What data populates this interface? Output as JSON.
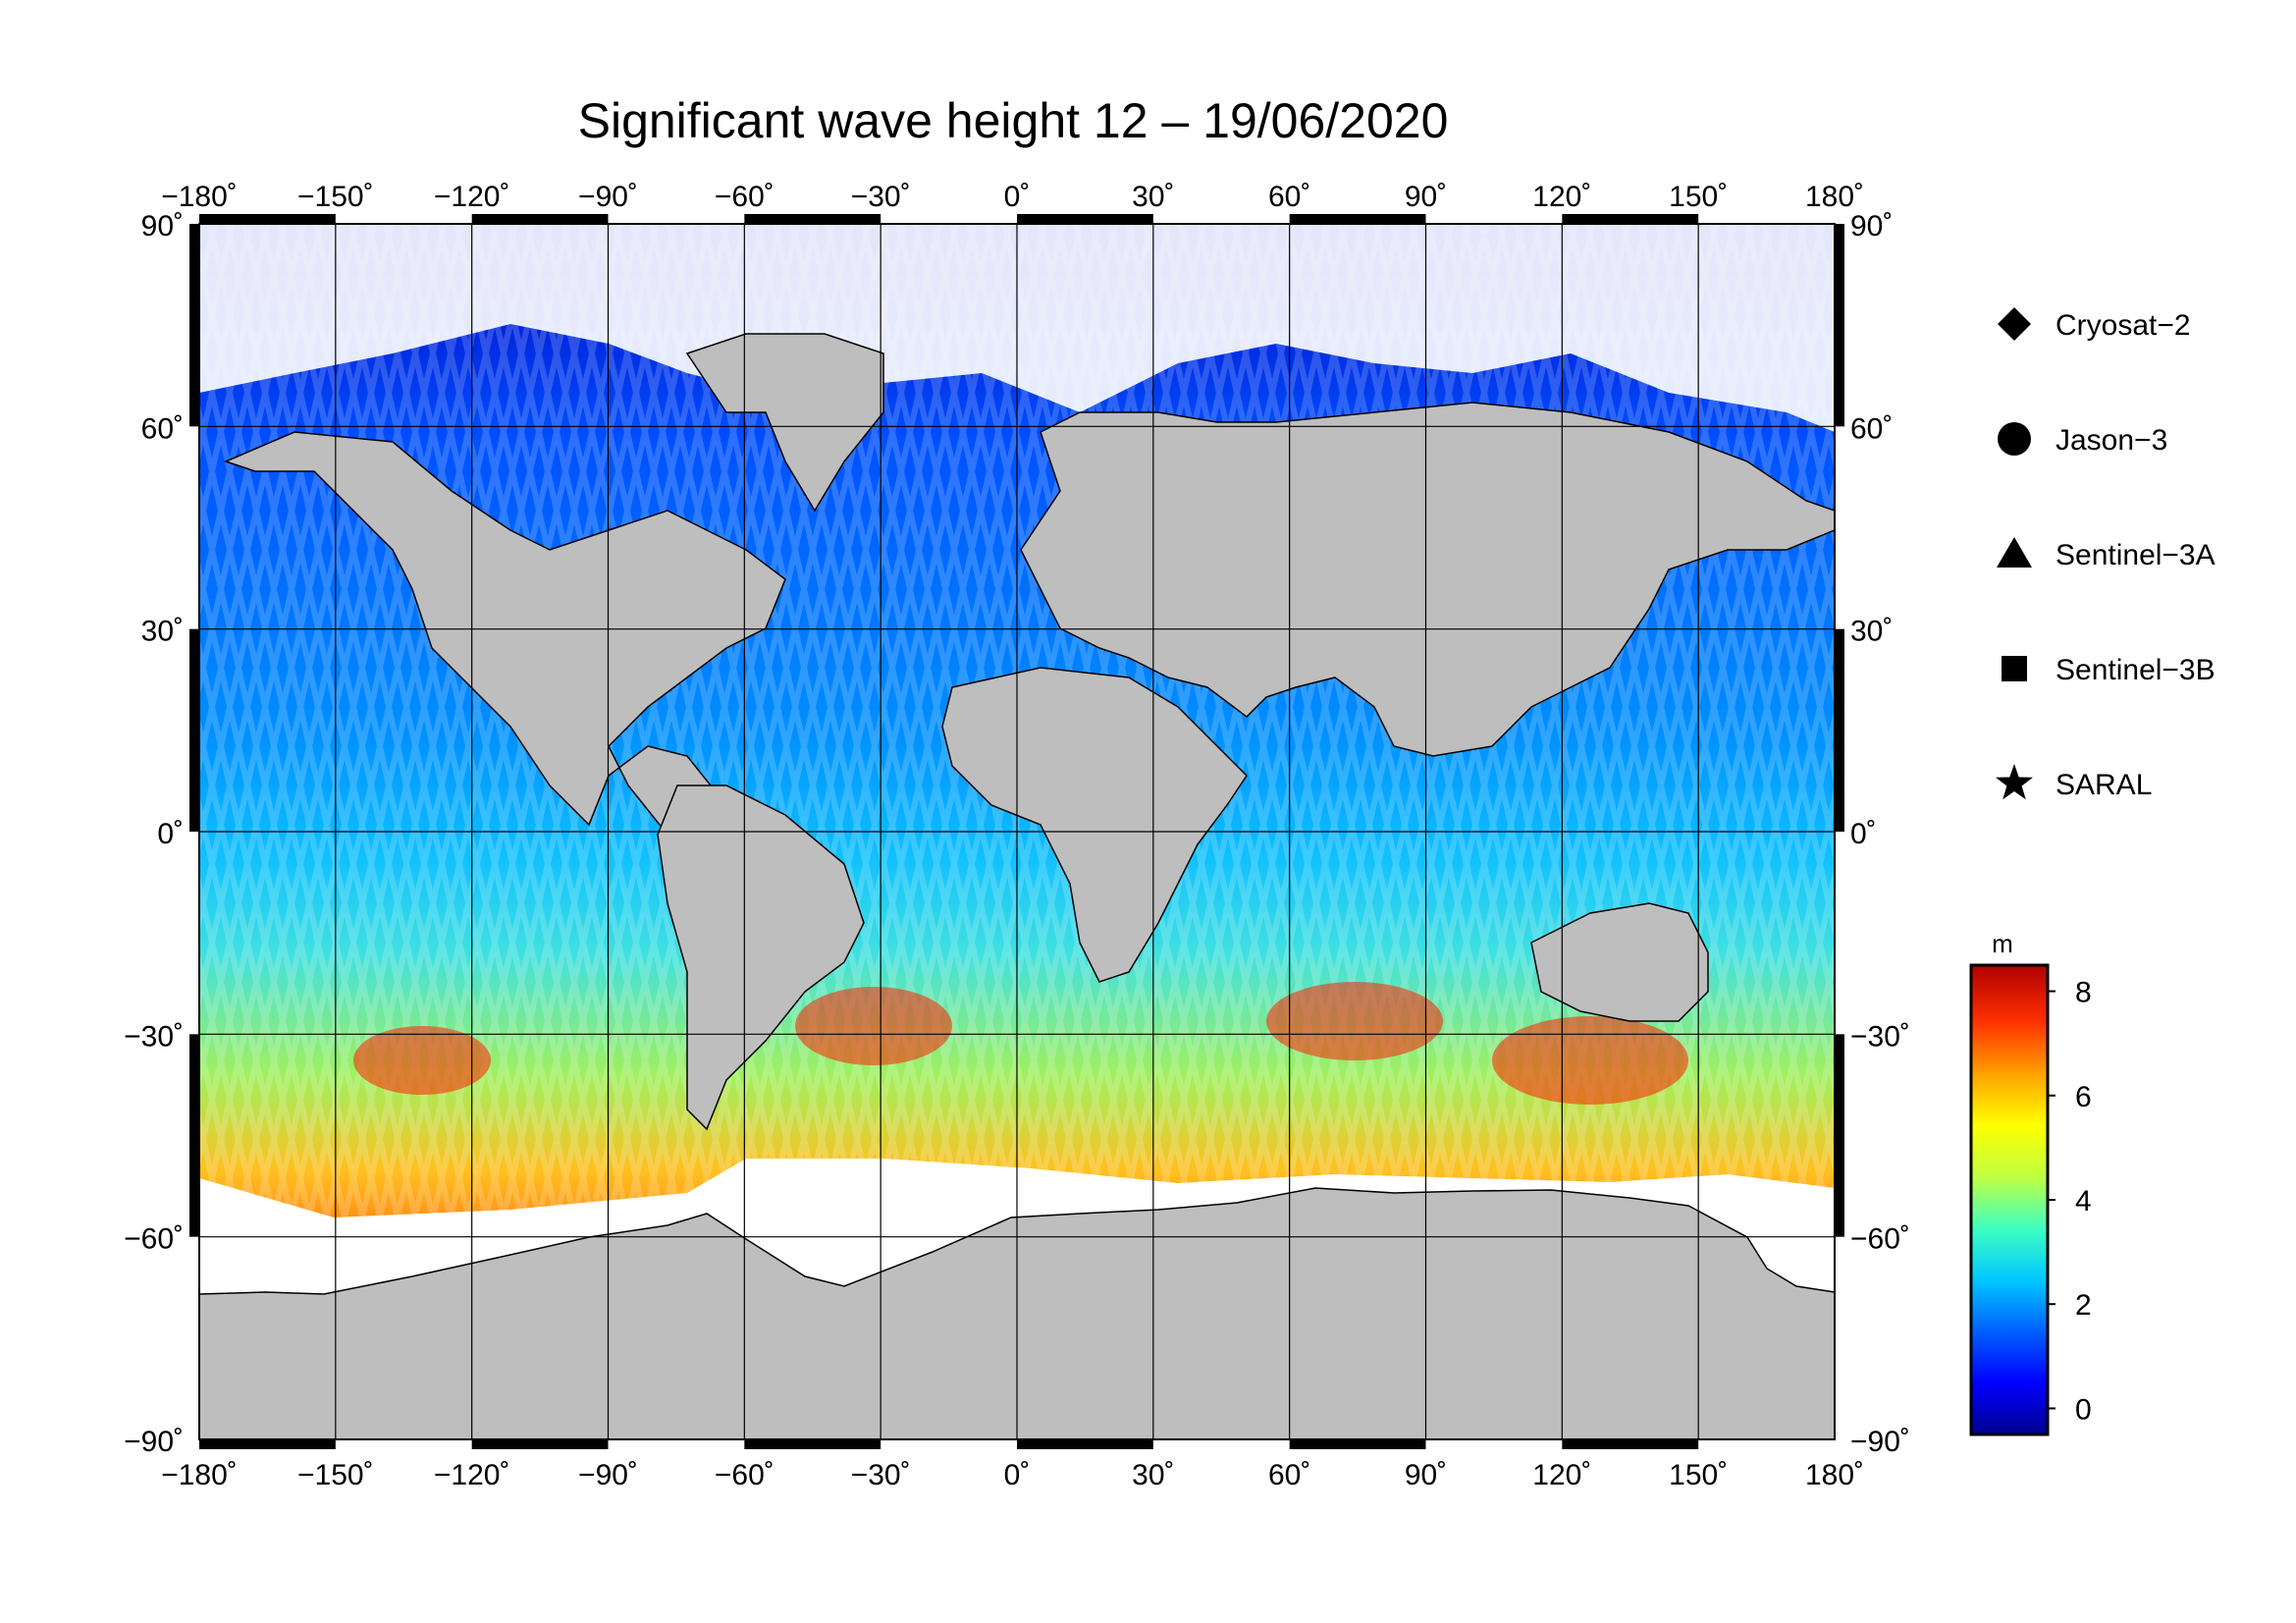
{
  "title": "Significant wave height 12 – 19/06/2020",
  "map": {
    "lon_range": [
      -180,
      180
    ],
    "lat_range": [
      -90,
      90
    ],
    "lon_ticks": [
      "−180˚",
      "−150˚",
      "−120˚",
      "−90˚",
      "−60˚",
      "−30˚",
      "0˚",
      "30˚",
      "60˚",
      "90˚",
      "120˚",
      "150˚",
      "180˚"
    ],
    "lat_ticks_left": [
      "90˚",
      "60˚",
      "30˚",
      "0˚",
      "−30˚",
      "−60˚",
      "−90˚"
    ],
    "lat_ticks_right": [
      "90˚",
      "60˚",
      "30˚",
      "0˚",
      "−30˚",
      "−60˚",
      "−90˚"
    ],
    "grid": true,
    "land_color": "#bebebe",
    "sea_ice_color": "#ffffff"
  },
  "legend": {
    "items": [
      {
        "label": "Cryosat−2",
        "marker": "diamond"
      },
      {
        "label": "Jason−3",
        "marker": "circle"
      },
      {
        "label": "Sentinel−3A",
        "marker": "triangle"
      },
      {
        "label": "Sentinel−3B",
        "marker": "square"
      },
      {
        "label": "SARAL",
        "marker": "star"
      }
    ]
  },
  "colorbar": {
    "unit": "m",
    "min": -0.5,
    "max": 8.5,
    "tick_values": [
      0,
      2,
      4,
      6,
      8
    ],
    "tick_labels": [
      "0",
      "2",
      "4",
      "6",
      "8"
    ],
    "colors": [
      "#00008f",
      "#0000ff",
      "#0060ff",
      "#00c8ff",
      "#40ffc0",
      "#c0ff40",
      "#ffff00",
      "#ffa000",
      "#ff3000",
      "#b00000"
    ]
  }
}
